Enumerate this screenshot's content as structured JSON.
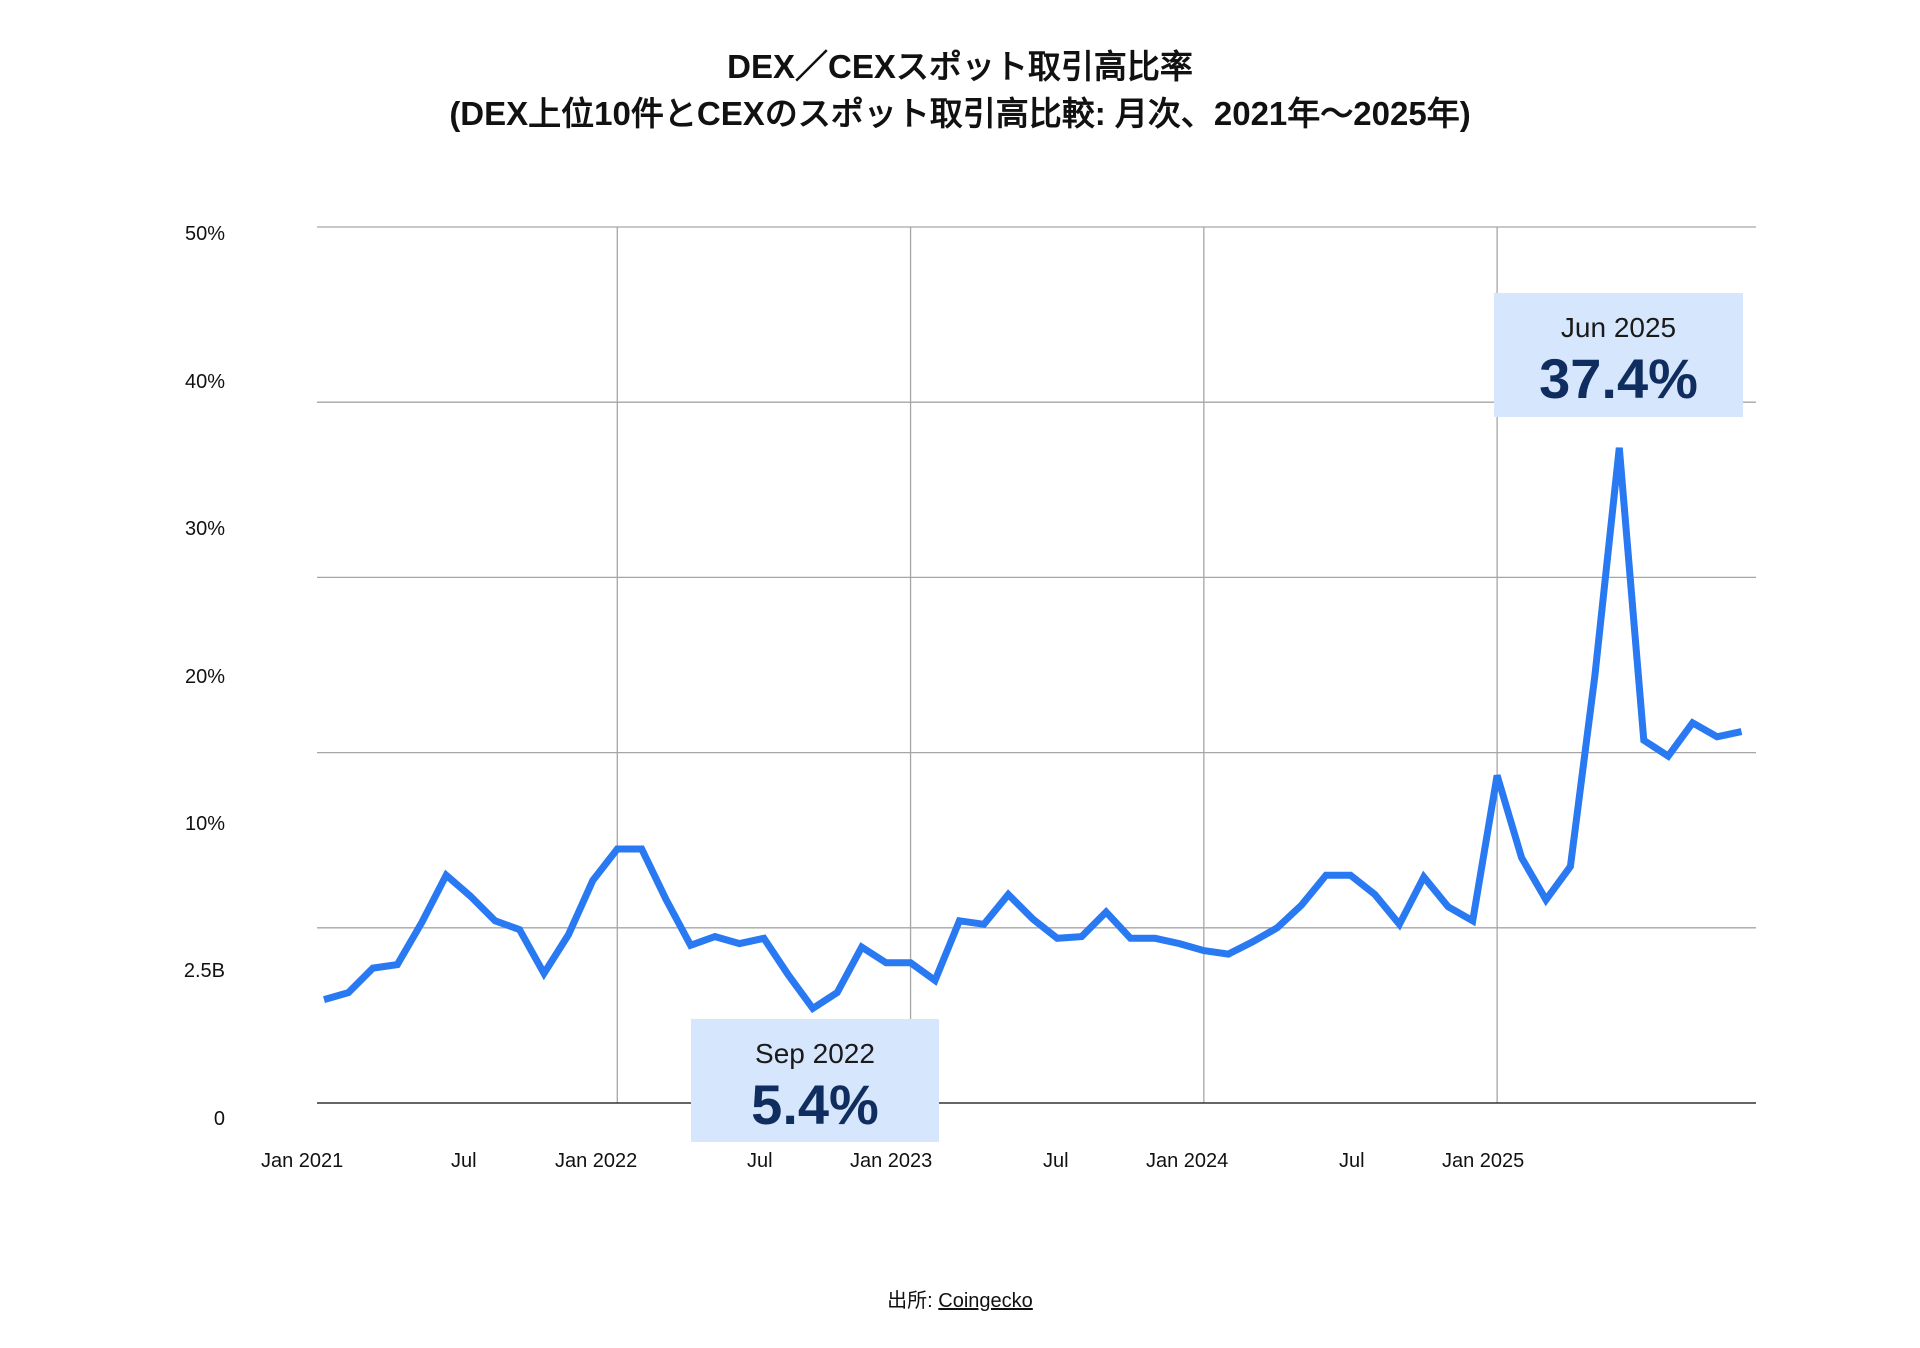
{
  "title": {
    "line1": "DEX／CEXスポット取引高比率",
    "line2": "(DEX上位10件とCEXのスポット取引高比較: 月次、2021年～2025年)"
  },
  "y_axis": {
    "labels": [
      "50%",
      "40%",
      "30%",
      "20%",
      "10%",
      "2.5B",
      "0"
    ]
  },
  "x_axis": {
    "labels": [
      "Jan 2021",
      "Jul",
      "Jan 2022",
      "Jul",
      "Jan 2023",
      "Jul",
      "Jan 2024",
      "Jul",
      "Jan 2025"
    ]
  },
  "annotations": [
    {
      "date": "Sep 2022",
      "value": "5.4%"
    },
    {
      "date": "Jun 2025",
      "value": "37.4%"
    }
  ],
  "source": {
    "prefix": "出所: ",
    "link_text": "Coingecko"
  },
  "colors": {
    "line": "#2979f2",
    "annotation_bg": "#d6e6fc",
    "annotation_value": "#0f2d5e",
    "grid": "#a6a6a6",
    "baseline": "#333333"
  },
  "chart_data": {
    "type": "line",
    "title": "DEX／CEXスポット取引高比率 (DEX上位10件とCEXのスポット取引高比較: 月次、2021年～2025年)",
    "xlabel": "",
    "ylabel": "",
    "ylim": [
      0,
      50
    ],
    "grid": true,
    "y_tick_labels": [
      "50%",
      "40%",
      "30%",
      "20%",
      "10%",
      "2.5B",
      "0"
    ],
    "x_tick_labels": [
      "Jan 2021",
      "Jul",
      "Jan 2022",
      "Jul",
      "Jan 2023",
      "Jul",
      "Jan 2024",
      "Jul",
      "Jan 2025"
    ],
    "x": [
      "2021-01",
      "2021-02",
      "2021-03",
      "2021-04",
      "2021-05",
      "2021-06",
      "2021-07",
      "2021-08",
      "2021-09",
      "2021-10",
      "2021-11",
      "2021-12",
      "2022-01",
      "2022-02",
      "2022-03",
      "2022-04",
      "2022-05",
      "2022-06",
      "2022-07",
      "2022-08",
      "2022-09",
      "2022-10",
      "2022-11",
      "2022-12",
      "2023-01",
      "2023-02",
      "2023-03",
      "2023-04",
      "2023-05",
      "2023-06",
      "2023-07",
      "2023-08",
      "2023-09",
      "2023-10",
      "2023-11",
      "2023-12",
      "2024-01",
      "2024-02",
      "2024-03",
      "2024-04",
      "2024-05",
      "2024-06",
      "2024-07",
      "2024-08",
      "2024-09",
      "2024-10",
      "2024-11",
      "2024-12",
      "2025-01",
      "2025-02",
      "2025-03",
      "2025-04",
      "2025-05",
      "2025-06",
      "2025-07",
      "2025-08",
      "2025-09",
      "2025-10",
      "2025-11"
    ],
    "series": [
      {
        "name": "DEX/CEX spot volume ratio (%)",
        "values": [
          5.9,
          6.3,
          7.7,
          7.9,
          10.3,
          13.0,
          11.8,
          10.4,
          9.9,
          7.4,
          9.6,
          12.7,
          14.5,
          14.5,
          11.6,
          9.0,
          9.5,
          9.1,
          9.4,
          7.3,
          5.4,
          6.3,
          8.9,
          8.0,
          8.0,
          7.0,
          10.4,
          10.2,
          11.9,
          10.5,
          9.4,
          9.5,
          10.9,
          9.4,
          9.4,
          9.1,
          8.7,
          8.5,
          9.2,
          10.0,
          11.3,
          13.0,
          13.0,
          11.9,
          10.2,
          12.9,
          11.2,
          10.4,
          18.7,
          14.0,
          11.6,
          13.5,
          24.4,
          37.4,
          20.7,
          19.8,
          21.7,
          20.9,
          21.2
        ]
      }
    ],
    "annotations": [
      {
        "x": "2022-09",
        "label": "Sep 2022",
        "value": "5.4%"
      },
      {
        "x": "2025-06",
        "label": "Jun 2025",
        "value": "37.4%"
      }
    ]
  }
}
